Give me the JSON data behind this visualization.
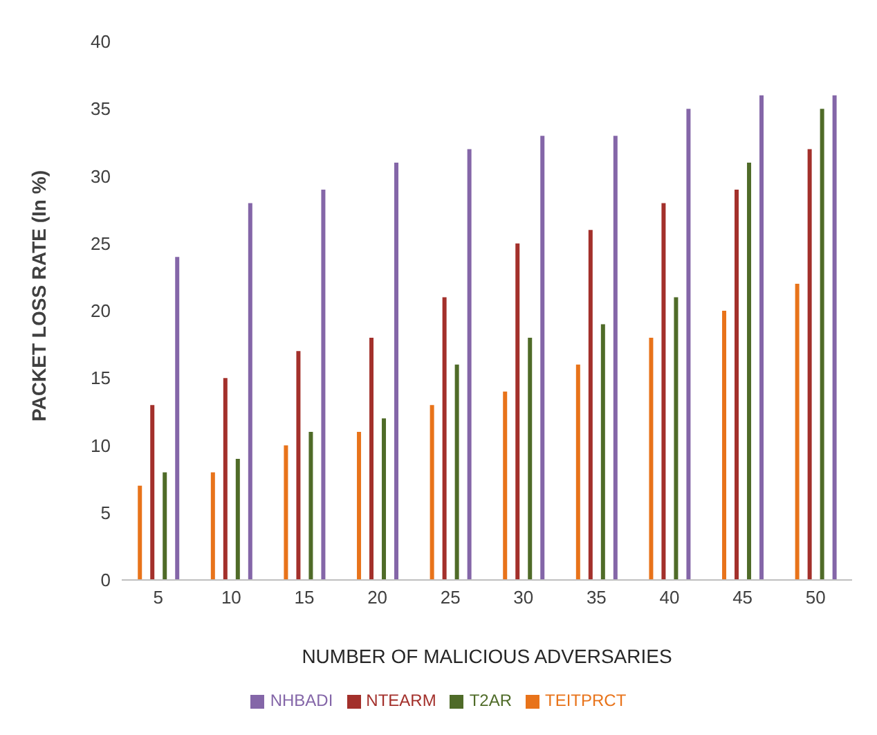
{
  "chart_data": {
    "type": "bar",
    "xlabel": "NUMBER OF MALICIOUS ADVERSARIES",
    "ylabel": "PACKET LOSS RATE (In %)",
    "categories": [
      "5",
      "10",
      "15",
      "20",
      "25",
      "30",
      "35",
      "40",
      "45",
      "50"
    ],
    "series": [
      {
        "name": "TEITPRCT",
        "color": "#e8731a",
        "values": [
          7,
          8,
          10,
          11,
          13,
          14,
          16,
          18,
          20,
          22
        ]
      },
      {
        "name": "NTEARM",
        "color": "#a3302b",
        "values": [
          13,
          15,
          17,
          18,
          21,
          25,
          26,
          28,
          29,
          32
        ]
      },
      {
        "name": "T2AR",
        "color": "#4f6b28",
        "values": [
          8,
          9,
          11,
          12,
          16,
          18,
          19,
          21,
          31,
          35
        ]
      },
      {
        "name": "NHBADI",
        "color": "#8466a8",
        "values": [
          24,
          28,
          29,
          31,
          32,
          33,
          33,
          35,
          36,
          36
        ]
      }
    ],
    "ylim": [
      0,
      40
    ],
    "yticks": [
      0,
      5,
      10,
      15,
      20,
      25,
      30,
      35,
      40
    ],
    "grid": false,
    "legend": "bottom"
  }
}
